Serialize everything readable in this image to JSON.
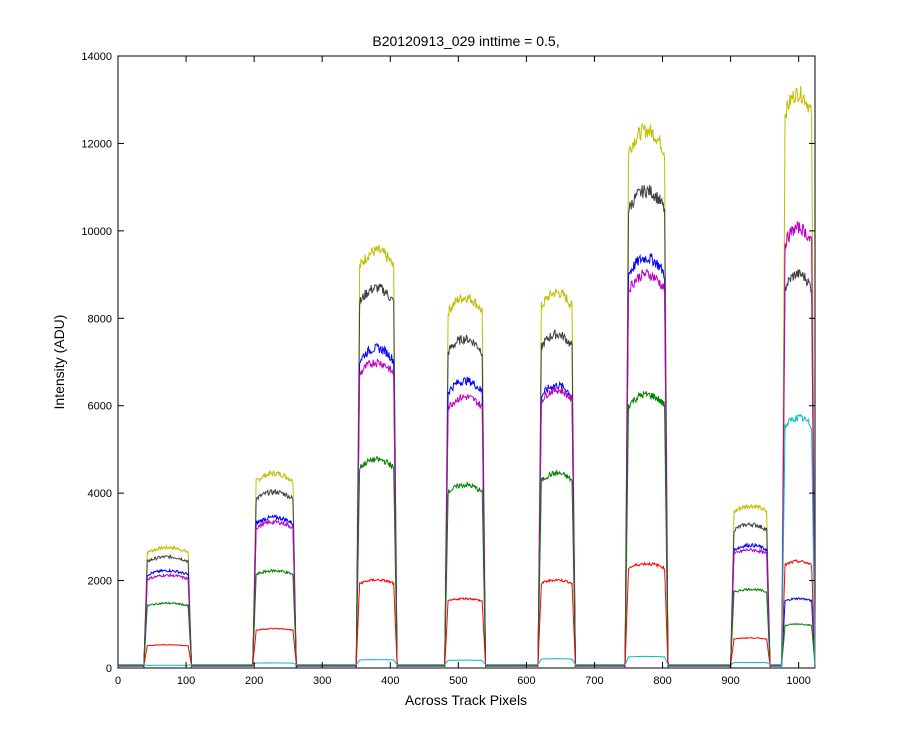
{
  "chart_data": {
    "type": "line",
    "title": "B20120913_029 inttime = 0.5,",
    "xlabel": "Across Track Pixels",
    "ylabel": "Intensity (ADU)",
    "xlim": [
      0,
      1024
    ],
    "ylim": [
      0,
      14000
    ],
    "xticks": [
      0,
      100,
      200,
      300,
      400,
      500,
      600,
      700,
      800,
      900,
      1000
    ],
    "yticks": [
      0,
      2000,
      4000,
      6000,
      8000,
      10000,
      12000,
      14000
    ],
    "grid": false,
    "legend": "none",
    "series": [
      {
        "color": "#bfbf00",
        "values": [
          50,
          2600,
          4200,
          9000,
          8000,
          8100,
          11600,
          3500,
          12400
        ]
      },
      {
        "color": "#404040",
        "values": [
          50,
          2400,
          3800,
          8200,
          7100,
          7200,
          10300,
          3100,
          8500
        ]
      },
      {
        "color": "#0000ff",
        "values": [
          40,
          2100,
          3250,
          6900,
          6200,
          6100,
          8850,
          2650,
          1500
        ]
      },
      {
        "color": "#bf00bf",
        "values": [
          40,
          2000,
          3150,
          6600,
          5850,
          6000,
          8500,
          2550,
          9500
        ]
      },
      {
        "color": "#008000",
        "values": [
          30,
          1400,
          2100,
          4500,
          3950,
          4200,
          5900,
          1700,
          950
        ]
      },
      {
        "color": "#ff0000",
        "values": [
          20,
          500,
          850,
          1900,
          1500,
          1900,
          2250,
          650,
          2300
        ]
      },
      {
        "color": "#00bfbf",
        "values": [
          10,
          60,
          110,
          180,
          170,
          200,
          250,
          120,
          5400
        ]
      }
    ],
    "segments_x": [
      [
        0,
        30
      ],
      [
        38,
        108
      ],
      [
        198,
        262
      ],
      [
        350,
        410
      ],
      [
        480,
        540
      ],
      [
        617,
        672
      ],
      [
        745,
        808
      ],
      [
        900,
        958
      ],
      [
        975,
        1024
      ]
    ]
  }
}
